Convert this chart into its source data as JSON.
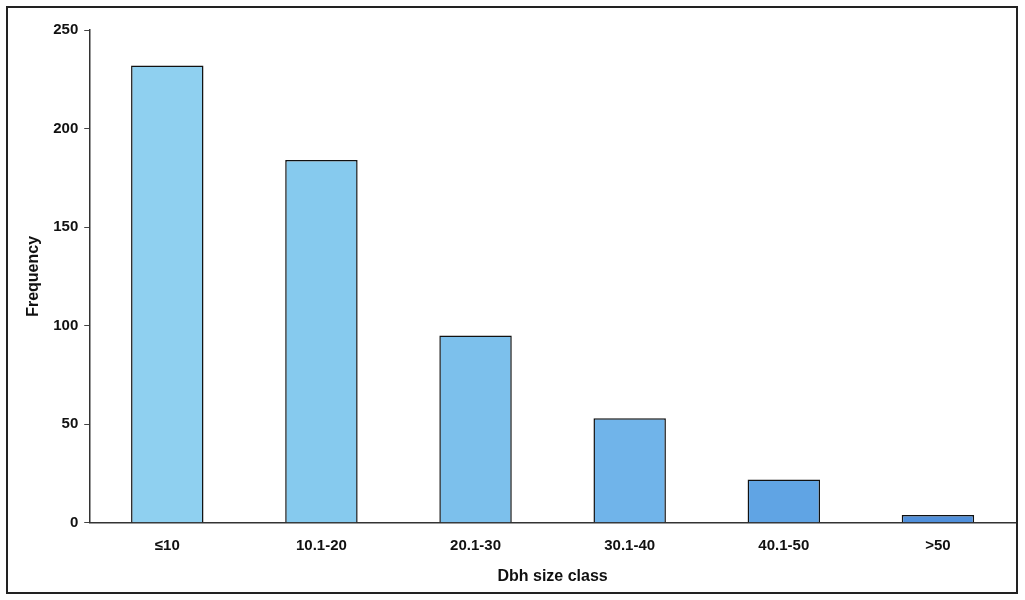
{
  "chart_data": {
    "type": "bar",
    "xlabel": "Dbh size class",
    "ylabel": "Frequency",
    "categories": [
      "≤10",
      "10.1-20",
      "20.1-30",
      "30.1-40",
      "40.1-50",
      ">50"
    ],
    "values": [
      232,
      184,
      95,
      53,
      22,
      4
    ],
    "colors": [
      "#8fd0f0",
      "#86caee",
      "#7cc0ec",
      "#70b4ea",
      "#60a4e4",
      "#5090dc"
    ],
    "ylim": [
      0,
      250
    ],
    "yticks": [
      0,
      50,
      100,
      150,
      200,
      250
    ],
    "grid": false,
    "legend": false
  }
}
